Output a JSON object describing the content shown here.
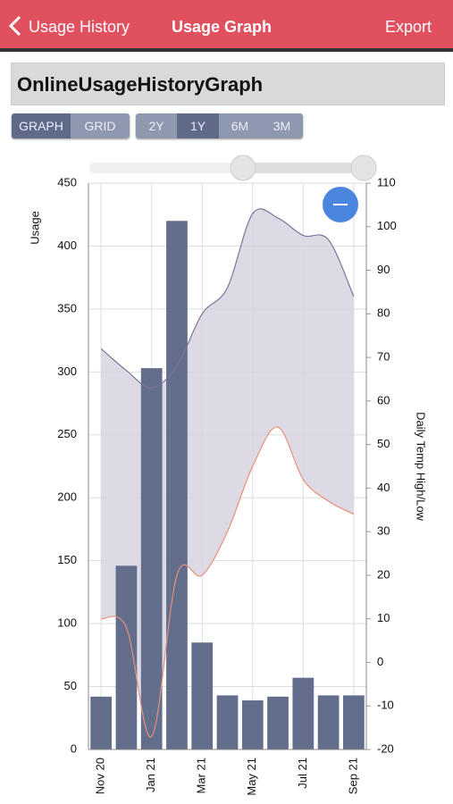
{
  "header": {
    "back": "Usage History",
    "title": "Usage Graph",
    "action": "Export"
  },
  "page_title": "OnlineUsageHistoryGraph",
  "view_buttons": [
    "GRAPH",
    "GRID"
  ],
  "range_buttons": [
    "2Y",
    "1Y",
    "6M",
    "3M"
  ],
  "chart_data": {
    "type": "bar",
    "categories": [
      "Nov 20",
      null,
      "Jan 21",
      null,
      "Mar 21",
      null,
      "May 21",
      null,
      "Jul 21",
      null,
      "Sep 21"
    ],
    "series": [
      {
        "values": [
          42,
          146,
          303,
          420,
          85,
          43,
          39,
          42,
          57,
          43,
          43
        ],
        "color": "#626e8c"
      },
      {
        "type": "line",
        "axis": "y2",
        "color": "#7a7596",
        "values": [
          72,
          67,
          63,
          68,
          80,
          86,
          103,
          102,
          98,
          97,
          84
        ]
      },
      {
        "type": "line",
        "axis": "y2",
        "color": "#e8907a",
        "values": [
          10,
          8,
          -17,
          20,
          20,
          30,
          45,
          54,
          42,
          37,
          34
        ]
      }
    ],
    "band_fill": "#d8d4e0",
    "ylabel": "Usage",
    "y2label": "Daily Temp High/Low",
    "ylim": [
      0,
      450
    ],
    "yticks": [
      0,
      50,
      100,
      150,
      200,
      250,
      300,
      350,
      400,
      450
    ],
    "y2lim": [
      -20,
      110
    ],
    "y2ticks": [
      -20,
      -10,
      0,
      10,
      20,
      30,
      40,
      50,
      60,
      70,
      80,
      90,
      100,
      110
    ],
    "grid": true
  }
}
